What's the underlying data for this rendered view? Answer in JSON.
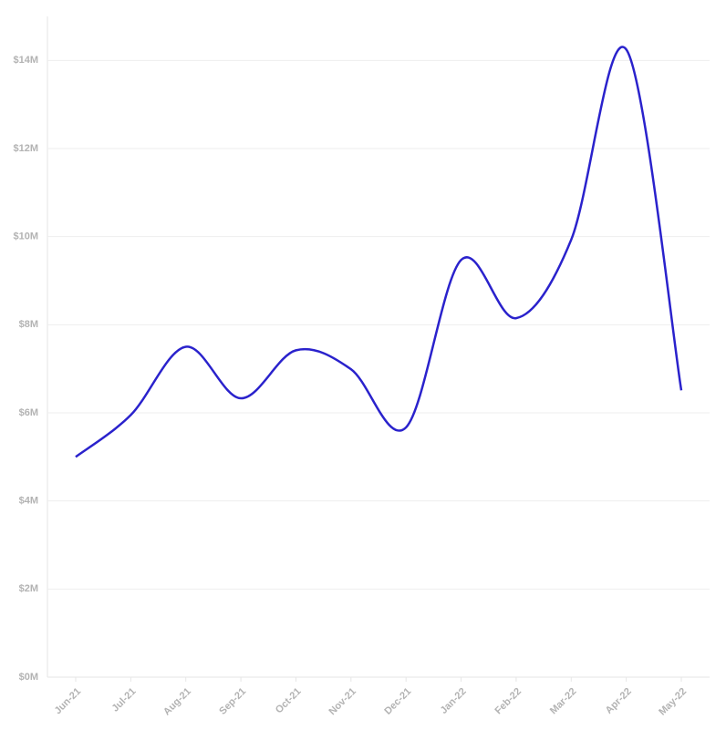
{
  "chart_data": {
    "type": "line",
    "categories": [
      "Jun-21",
      "Jul-21",
      "Aug-21",
      "Sep-21",
      "Oct-21",
      "Nov-21",
      "Dec-21",
      "Jan-22",
      "Feb-22",
      "Mar-22",
      "Apr-22",
      "May-22"
    ],
    "values": [
      5000000,
      5950000,
      7500000,
      6330000,
      7420000,
      6990000,
      5670000,
      9470000,
      8150000,
      9930000,
      14250000,
      6510000
    ],
    "color": "#2a22cc",
    "ylim": [
      0,
      15000000
    ],
    "yticks": [
      {
        "value": 0,
        "label": "$0M"
      },
      {
        "value": 2000000,
        "label": "$2M"
      },
      {
        "value": 4000000,
        "label": "$4M"
      },
      {
        "value": 6000000,
        "label": "$6M"
      },
      {
        "value": 8000000,
        "label": "$8M"
      },
      {
        "value": 10000000,
        "label": "$10M"
      },
      {
        "value": 12000000,
        "label": "$12M"
      },
      {
        "value": 14000000,
        "label": "$14M"
      }
    ],
    "grid": true
  }
}
